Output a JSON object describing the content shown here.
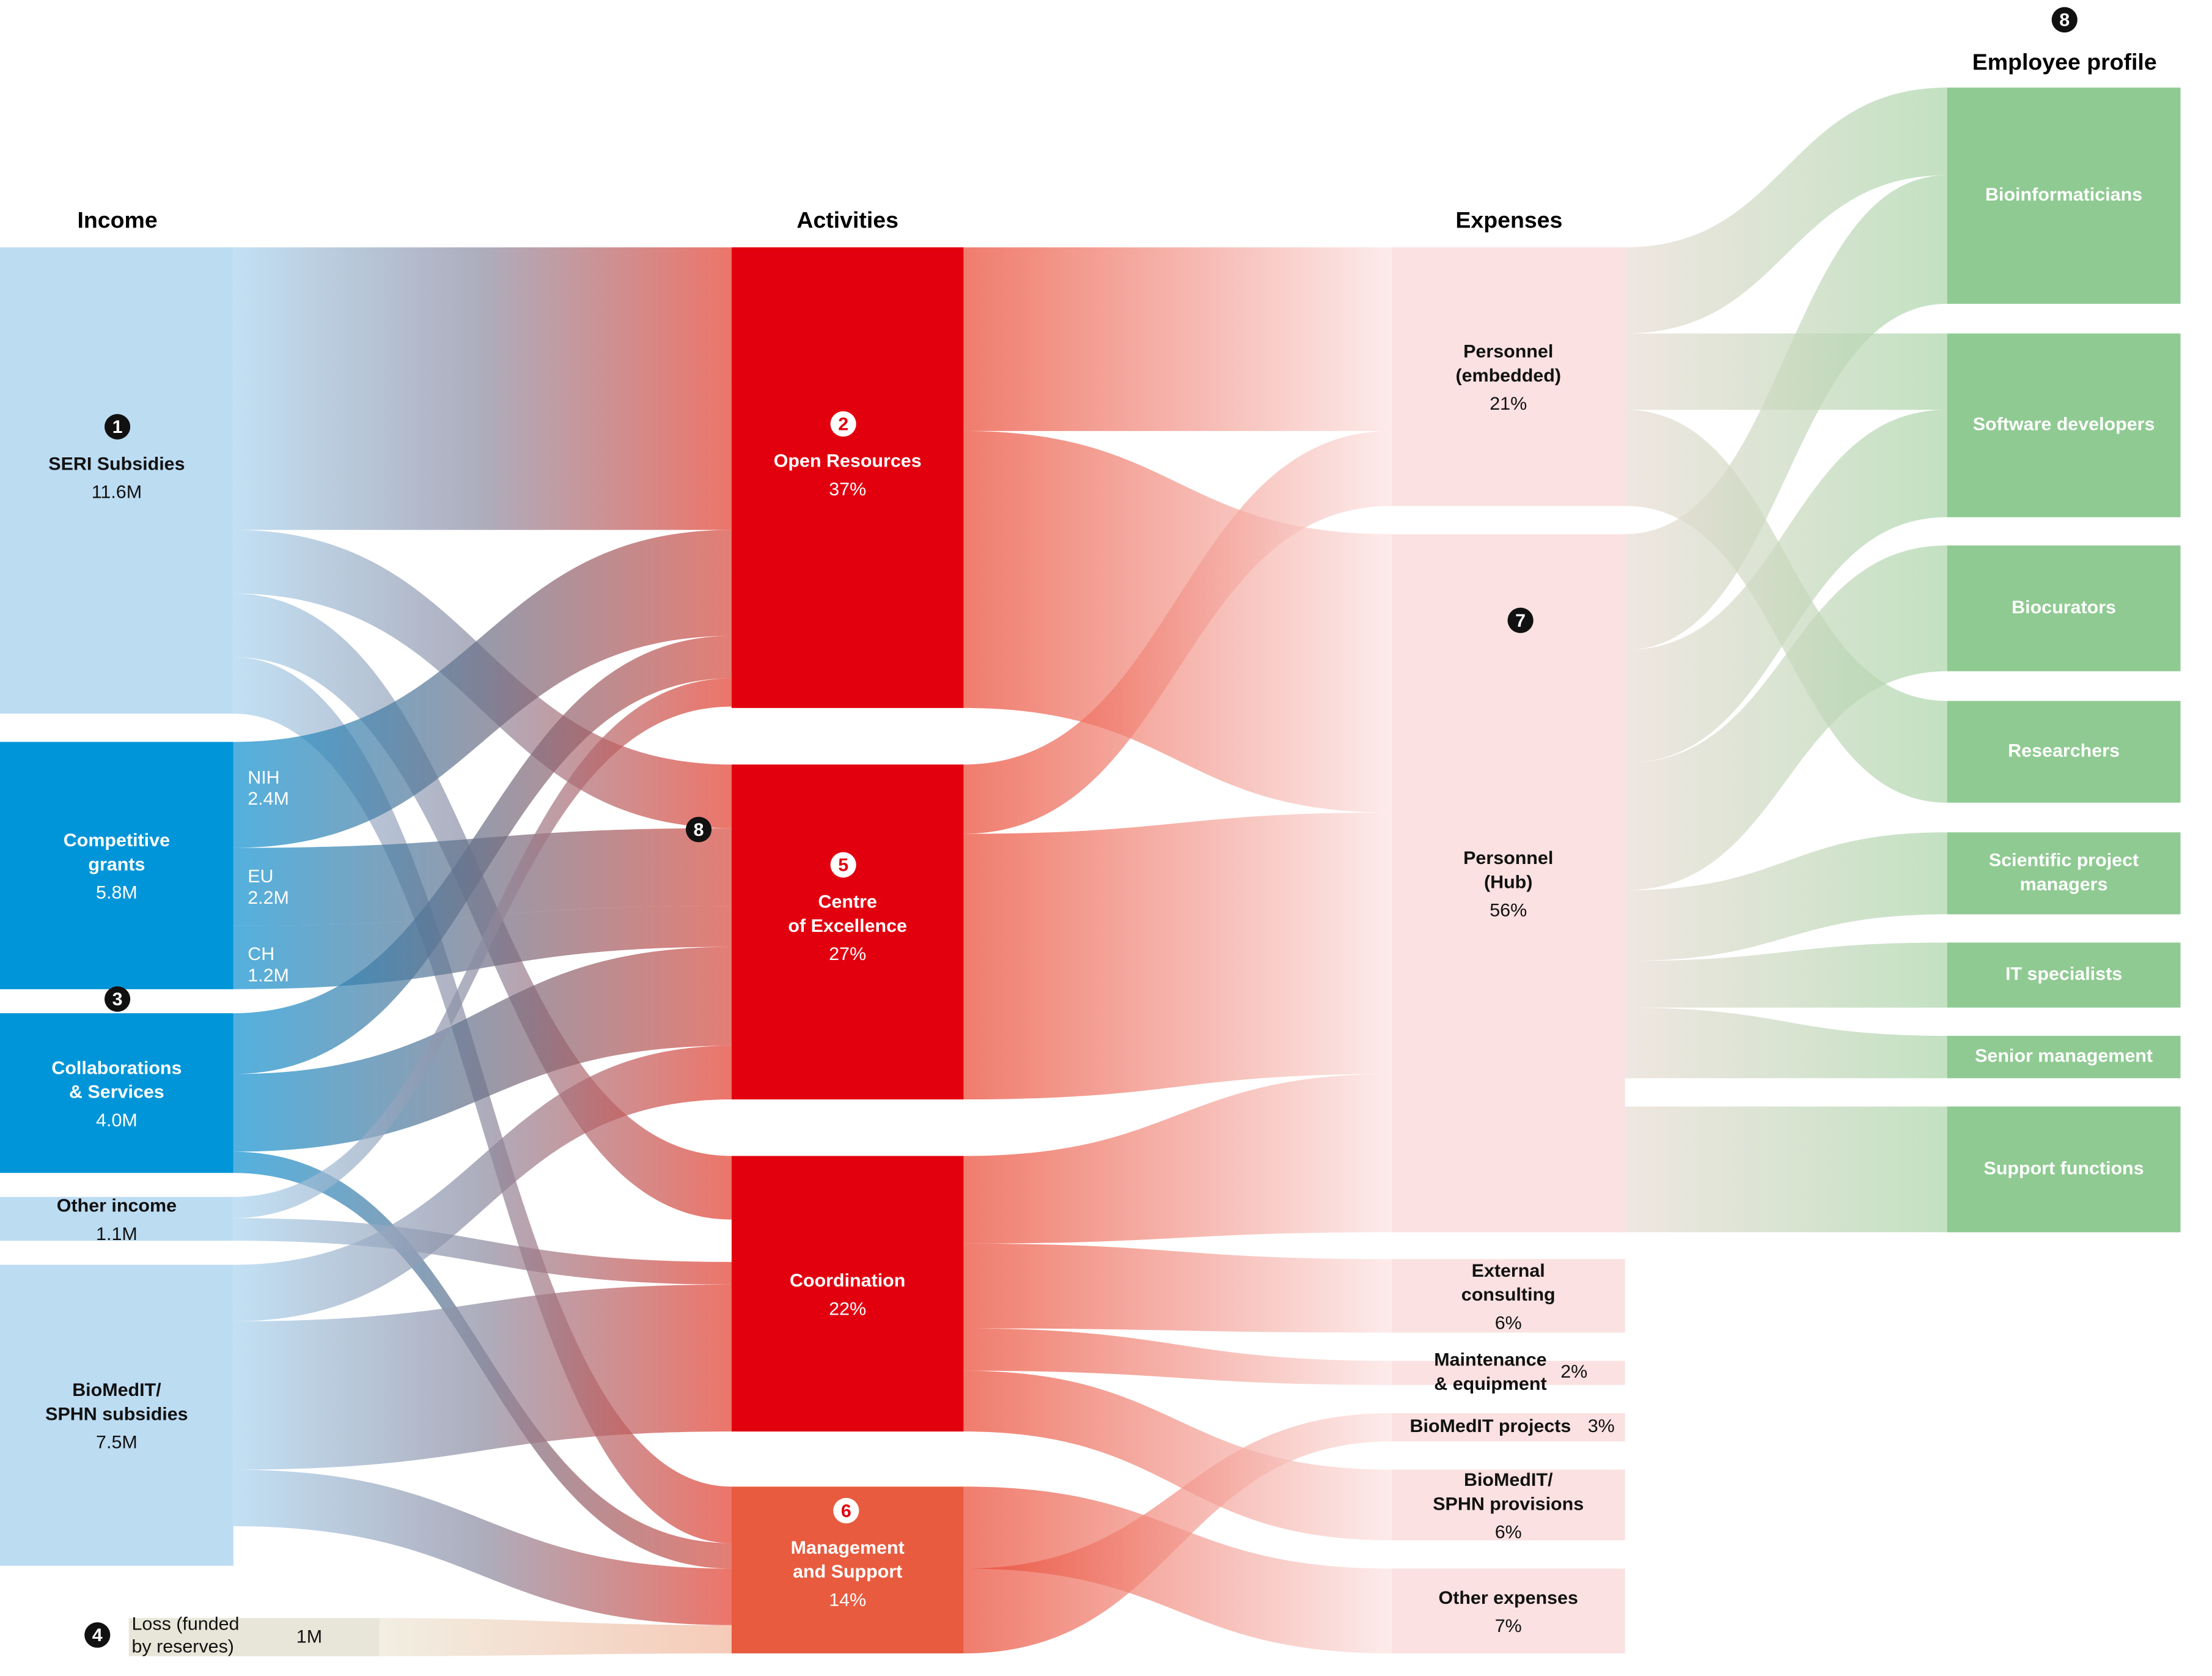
{
  "headers": {
    "income": "Income",
    "activities": "Activities",
    "expenses": "Expenses",
    "employees": "Employee profile",
    "employees_marker": "8"
  },
  "income": [
    {
      "label": [
        "SERI Subsidies"
      ],
      "value": "11.6M",
      "marker": "1"
    },
    {
      "label": [
        "Competitive",
        "grants"
      ],
      "value": "5.8M",
      "parts": [
        {
          "label": "NIH",
          "value": "2.4M"
        },
        {
          "label": "EU",
          "value": "2.2M"
        },
        {
          "label": "CH",
          "value": "1.2M"
        }
      ]
    },
    {
      "label": [
        "Collaborations",
        "& Services"
      ],
      "value": "4.0M",
      "marker": "3"
    },
    {
      "label": [
        "Other income"
      ],
      "value": "1.1M"
    },
    {
      "label": [
        "BioMedIT/",
        "SPHN subsidies"
      ],
      "value": "7.5M"
    },
    {
      "label": [
        "Loss (funded",
        "by reserves)"
      ],
      "value": "1M",
      "marker": "4"
    }
  ],
  "activities": [
    {
      "label": [
        "Open Resources"
      ],
      "value": "37%",
      "marker": "2"
    },
    {
      "label": [
        "Centre",
        "of Excellence"
      ],
      "value": "27%",
      "marker": "5"
    },
    {
      "label": [
        "Coordination"
      ],
      "value": "22%"
    },
    {
      "label": [
        "Management",
        "and Support"
      ],
      "value": "14%",
      "marker": "6"
    }
  ],
  "activities_marker": "8",
  "expenses": [
    {
      "label": [
        "Personnel",
        "(embedded)"
      ],
      "value": "21%"
    },
    {
      "label": [
        "Personnel",
        "(Hub)"
      ],
      "value": "56%",
      "marker": "7"
    },
    {
      "label": [
        "External",
        "consulting"
      ],
      "value": "6%"
    },
    {
      "label": [
        "Maintenance",
        "& equipment"
      ],
      "value": "2%"
    },
    {
      "label": [
        "BioMedIT projects"
      ],
      "value": "3%"
    },
    {
      "label": [
        "BioMedIT/",
        "SPHN provisions"
      ],
      "value": "6%"
    },
    {
      "label": [
        "Other expenses"
      ],
      "value": "7%"
    }
  ],
  "employees": [
    {
      "label": [
        "Bioinformaticians"
      ]
    },
    {
      "label": [
        "Software developers"
      ]
    },
    {
      "label": [
        "Biocurators"
      ]
    },
    {
      "label": [
        "Researchers"
      ]
    },
    {
      "label": [
        "Scientific project",
        "managers"
      ]
    },
    {
      "label": [
        "IT specialists"
      ]
    },
    {
      "label": [
        "Senior management"
      ]
    },
    {
      "label": [
        "Support functions"
      ]
    }
  ]
}
